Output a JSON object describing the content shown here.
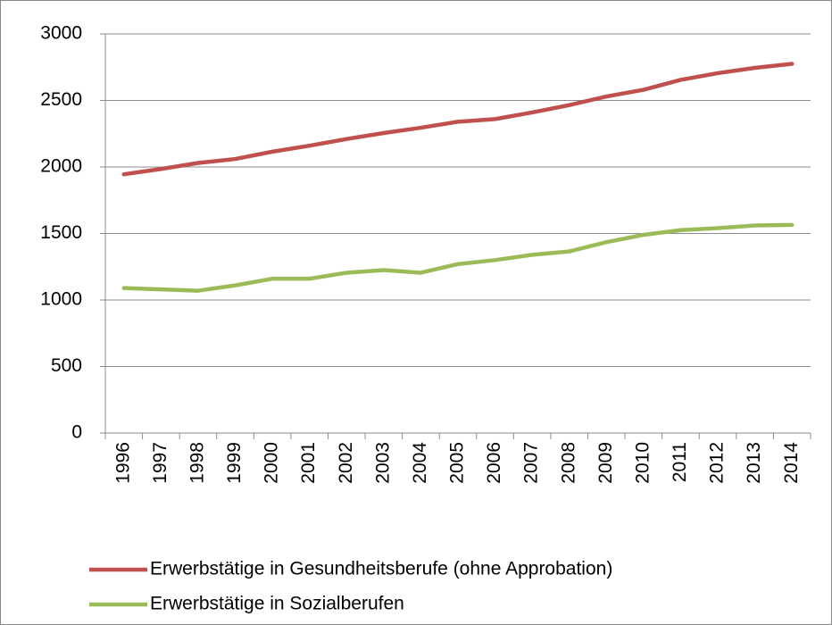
{
  "chart_data": {
    "type": "line",
    "categories": [
      "1996",
      "1997",
      "1998",
      "1999",
      "2000",
      "2001",
      "2002",
      "2003",
      "2004",
      "2005",
      "2006",
      "2007",
      "2008",
      "2009",
      "2010",
      "2011",
      "2012",
      "2013",
      "2014"
    ],
    "series": [
      {
        "name": "Erwerbstätige in Gesundheitsberufe (ohne Approbation)",
        "color": "#c0504d",
        "values": [
          1945,
          1985,
          2030,
          2060,
          2115,
          2160,
          2210,
          2255,
          2295,
          2340,
          2360,
          2410,
          2465,
          2530,
          2580,
          2655,
          2705,
          2745,
          2775
        ]
      },
      {
        "name": "Erwerbstätige in Sozialberufen",
        "color": "#9bbb59",
        "values": [
          1090,
          1080,
          1070,
          1110,
          1160,
          1160,
          1205,
          1225,
          1205,
          1270,
          1300,
          1340,
          1365,
          1435,
          1490,
          1525,
          1540,
          1560,
          1565
        ]
      }
    ],
    "ylim": [
      0,
      3000
    ],
    "yticks": [
      0,
      500,
      1000,
      1500,
      2000,
      2500,
      3000
    ],
    "grid": true,
    "legend": "bottom"
  }
}
